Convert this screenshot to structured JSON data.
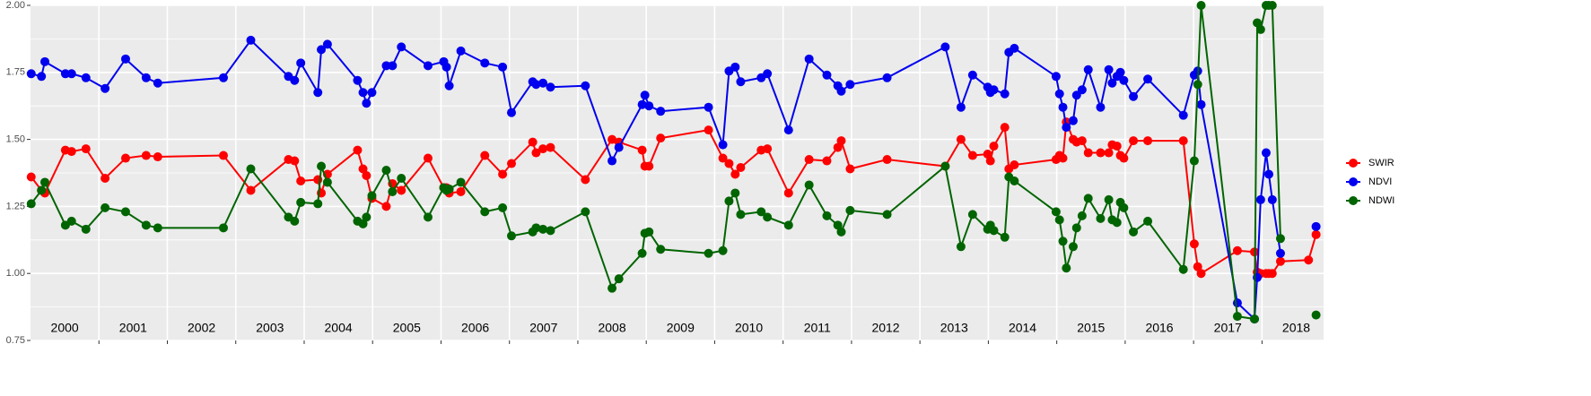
{
  "chart_data": {
    "type": "line",
    "x": [
      2000.01,
      2000.16,
      2000.21,
      2000.51,
      2000.6,
      2000.81,
      2001.09,
      2001.39,
      2001.69,
      2001.86,
      2002.82,
      2003.22,
      2003.77,
      2003.86,
      2003.95,
      2004.2,
      2004.25,
      2004.34,
      2004.78,
      2004.86,
      2004.91,
      2004.99,
      2005.2,
      2005.29,
      2005.42,
      2005.81,
      2006.04,
      2006.08,
      2006.12,
      2006.29,
      2006.64,
      2006.9,
      2007.03,
      2007.34,
      2007.39,
      2007.49,
      2007.6,
      2008.11,
      2008.5,
      2008.6,
      2008.94,
      2008.98,
      2009.04,
      2009.21,
      2009.91,
      2010.12,
      2010.21,
      2010.3,
      2010.38,
      2010.68,
      2010.77,
      2011.08,
      2011.38,
      2011.64,
      2011.8,
      2011.85,
      2011.98,
      2012.52,
      2013.37,
      2013.6,
      2013.77,
      2013.99,
      2014.03,
      2014.08,
      2014.24,
      2014.3,
      2014.38,
      2014.99,
      2015.04,
      2015.09,
      2015.14,
      2015.24,
      2015.29,
      2015.37,
      2015.46,
      2015.64,
      2015.76,
      2015.81,
      2015.88,
      2015.93,
      2015.98,
      2016.12,
      2016.33,
      2016.85,
      2017.01,
      2017.06,
      2017.11,
      2017.64,
      2017.89,
      2017.93,
      2017.98,
      2018.06,
      2018.1,
      2018.15,
      2018.27,
      2018.68,
      2018.79
    ],
    "series": [
      {
        "name": "SWIR",
        "color": "#ff0000",
        "values": [
          1.36,
          1.31,
          1.3,
          1.46,
          1.455,
          1.465,
          1.355,
          1.43,
          1.44,
          1.435,
          1.44,
          1.31,
          1.425,
          1.42,
          1.345,
          1.35,
          1.3,
          1.37,
          1.46,
          1.39,
          1.365,
          1.28,
          1.25,
          1.335,
          1.31,
          1.43,
          1.32,
          1.32,
          1.3,
          1.305,
          1.44,
          1.37,
          1.41,
          1.49,
          1.45,
          1.465,
          1.47,
          1.35,
          1.5,
          1.49,
          1.46,
          1.4,
          1.4,
          1.505,
          1.535,
          1.43,
          1.41,
          1.37,
          1.395,
          1.46,
          1.465,
          1.3,
          1.425,
          1.42,
          1.47,
          1.495,
          1.39,
          1.425,
          1.4,
          1.5,
          1.44,
          1.445,
          1.42,
          1.475,
          1.545,
          1.39,
          1.405,
          1.425,
          1.44,
          1.43,
          1.565,
          1.5,
          1.49,
          1.495,
          1.45,
          1.45,
          1.45,
          1.48,
          1.475,
          1.44,
          1.43,
          1.495,
          1.495,
          1.495,
          1.11,
          1.025,
          1.0,
          1.085,
          1.08,
          1.005,
          1.0,
          1.0,
          1.0,
          1.0,
          1.045,
          1.05,
          1.145
        ]
      },
      {
        "name": "NDVI",
        "color": "#0000ee",
        "values": [
          1.745,
          1.735,
          1.79,
          1.745,
          1.745,
          1.73,
          1.69,
          1.8,
          1.73,
          1.71,
          1.73,
          1.87,
          1.735,
          1.72,
          1.785,
          1.675,
          1.835,
          1.855,
          1.72,
          1.675,
          1.635,
          1.675,
          1.775,
          1.775,
          1.845,
          1.775,
          1.79,
          1.77,
          1.7,
          1.83,
          1.785,
          1.77,
          1.6,
          1.715,
          1.705,
          1.71,
          1.695,
          1.7,
          1.42,
          1.47,
          1.63,
          1.665,
          1.625,
          1.605,
          1.62,
          1.48,
          1.755,
          1.77,
          1.715,
          1.73,
          1.745,
          1.535,
          1.8,
          1.74,
          1.7,
          1.68,
          1.705,
          1.73,
          1.845,
          1.62,
          1.74,
          1.695,
          1.675,
          1.685,
          1.67,
          1.825,
          1.84,
          1.735,
          1.67,
          1.62,
          1.545,
          1.57,
          1.665,
          1.685,
          1.76,
          1.62,
          1.76,
          1.71,
          1.735,
          1.75,
          1.72,
          1.66,
          1.725,
          1.59,
          1.74,
          1.755,
          1.63,
          0.89,
          0.83,
          0.985,
          1.275,
          1.45,
          1.37,
          1.275,
          1.075,
          null,
          1.175
        ]
      },
      {
        "name": "NDWI",
        "color": "#006400",
        "values": [
          1.26,
          1.31,
          1.34,
          1.18,
          1.195,
          1.165,
          1.245,
          1.23,
          1.18,
          1.17,
          1.17,
          1.39,
          1.21,
          1.195,
          1.265,
          1.26,
          1.4,
          1.34,
          1.195,
          1.185,
          1.21,
          1.29,
          1.385,
          1.305,
          1.355,
          1.21,
          1.32,
          1.31,
          1.315,
          1.34,
          1.23,
          1.245,
          1.14,
          1.155,
          1.17,
          1.165,
          1.16,
          1.23,
          0.945,
          0.98,
          1.075,
          1.15,
          1.155,
          1.09,
          1.075,
          1.085,
          1.27,
          1.3,
          1.22,
          1.23,
          1.21,
          1.18,
          1.33,
          1.215,
          1.18,
          1.155,
          1.235,
          1.22,
          1.4,
          1.1,
          1.22,
          1.165,
          1.18,
          1.16,
          1.135,
          1.36,
          1.345,
          1.23,
          1.2,
          1.12,
          1.02,
          1.1,
          1.17,
          1.215,
          1.28,
          1.205,
          1.275,
          1.2,
          1.19,
          1.265,
          1.245,
          1.155,
          1.195,
          1.015,
          1.42,
          1.705,
          2.0,
          0.84,
          0.83,
          1.935,
          1.91,
          2.0,
          2.0,
          2.0,
          1.13,
          null,
          0.845
        ]
      }
    ],
    "xlim": [
      2000.0,
      2018.9
    ],
    "xticks": [
      {
        "value": 2000.5,
        "label": "2000"
      },
      {
        "value": 2001.5,
        "label": "2001"
      },
      {
        "value": 2002.5,
        "label": "2002"
      },
      {
        "value": 2003.5,
        "label": "2003"
      },
      {
        "value": 2004.5,
        "label": "2004"
      },
      {
        "value": 2005.5,
        "label": "2005"
      },
      {
        "value": 2006.5,
        "label": "2006"
      },
      {
        "value": 2007.5,
        "label": "2007"
      },
      {
        "value": 2008.5,
        "label": "2008"
      },
      {
        "value": 2009.5,
        "label": "2009"
      },
      {
        "value": 2010.5,
        "label": "2010"
      },
      {
        "value": 2011.5,
        "label": "2011"
      },
      {
        "value": 2012.5,
        "label": "2012"
      },
      {
        "value": 2013.5,
        "label": "2013"
      },
      {
        "value": 2014.5,
        "label": "2014"
      },
      {
        "value": 2015.5,
        "label": "2015"
      },
      {
        "value": 2016.5,
        "label": "2016"
      },
      {
        "value": 2017.5,
        "label": "2017"
      },
      {
        "value": 2018.5,
        "label": "2018"
      }
    ],
    "xgrid": [
      2001,
      2002,
      2003,
      2004,
      2005,
      2006,
      2007,
      2008,
      2009,
      2010,
      2011,
      2012,
      2013,
      2014,
      2015,
      2016,
      2017,
      2018
    ],
    "ylim": [
      0.75,
      2.0
    ],
    "yticks": [
      {
        "value": 0.75,
        "label": "0.75"
      },
      {
        "value": 1.0,
        "label": "1.00"
      },
      {
        "value": 1.25,
        "label": "1.25"
      },
      {
        "value": 1.5,
        "label": "1.50"
      },
      {
        "value": 1.75,
        "label": "1.75"
      },
      {
        "value": 2.0,
        "label": "2.00"
      }
    ],
    "grid": true,
    "legend": "right"
  }
}
